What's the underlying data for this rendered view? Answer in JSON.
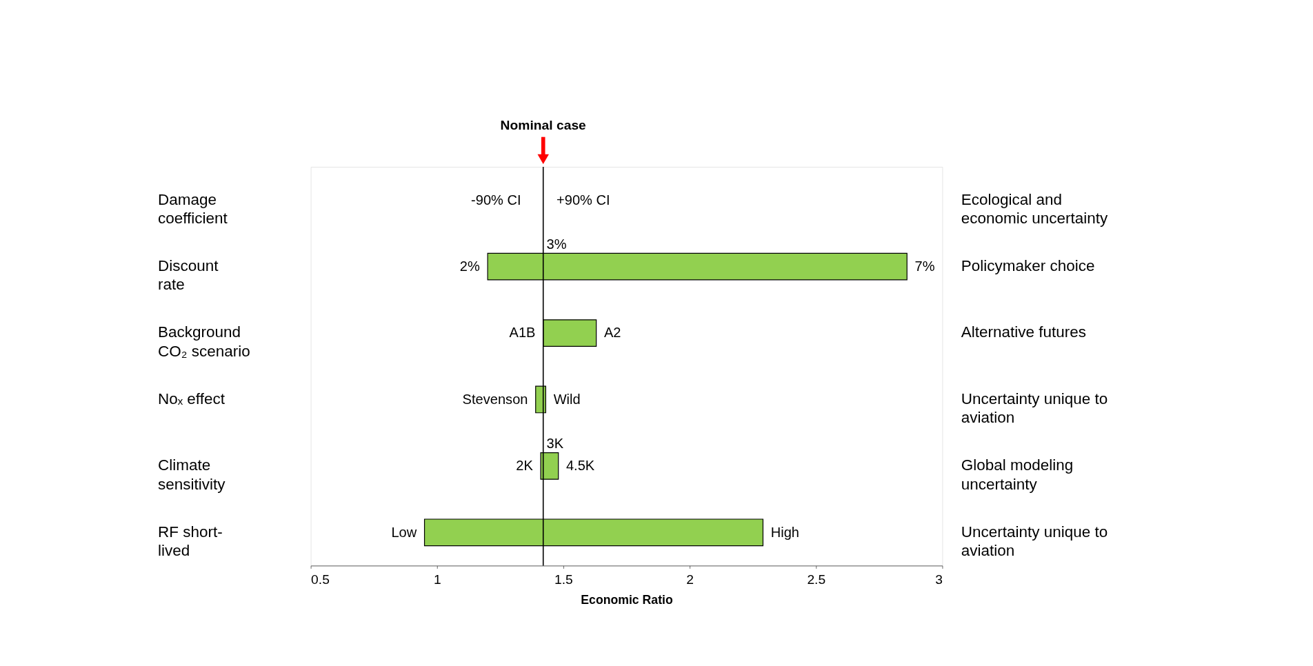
{
  "chart_data": {
    "type": "bar",
    "orientation": "horizontal",
    "xlabel": "Economic Ratio",
    "categories": [
      "Damage coefficient",
      "Discount rate",
      "Background CO₂ scenario",
      "Noₓ effect",
      "Climate sensitivity",
      "RF short-lived"
    ],
    "base": [
      null,
      1.2,
      1.42,
      1.39,
      1.41,
      0.95
    ],
    "values": [
      null,
      1.66,
      0.21,
      0.04,
      0.07,
      1.34
    ],
    "color": "#92d050",
    "xlim": [
      0.5,
      3
    ],
    "xticks": [
      0.5,
      1,
      1.5,
      2,
      2.5,
      3
    ],
    "grid": false,
    "ref_lines": [
      {
        "axis": "x",
        "value": 1.42,
        "label": "Nominal case",
        "color": "#000000"
      }
    ],
    "annotations": [
      "-90% CI",
      "+90% CI",
      {
        "text": "3%",
        "x": 1.42,
        "y": "Discount rate"
      },
      {
        "text": "2%",
        "x": 1.2,
        "y": "Discount rate"
      },
      {
        "text": "7%",
        "x": 2.86,
        "y": "Discount rate"
      },
      {
        "text": "A1B",
        "x": 1.42,
        "y": "Background CO₂ scenario"
      },
      {
        "text": "A2",
        "x": 1.63,
        "y": "Background CO₂ scenario"
      },
      {
        "text": "Stevenson",
        "x": 1.39,
        "y": "Noₓ effect"
      },
      {
        "text": "Wild",
        "x": 1.43,
        "y": "Noₓ effect"
      },
      {
        "text": "3K",
        "x": 1.42,
        "y": "Climate sensitivity"
      },
      {
        "text": "2K",
        "x": 1.41,
        "y": "Climate sensitivity"
      },
      {
        "text": "4.5K",
        "x": 1.48,
        "y": "Climate sensitivity"
      },
      {
        "text": "Low",
        "x": 0.95,
        "y": "RF short-lived"
      },
      {
        "text": "High",
        "x": 2.29,
        "y": "RF short-lived"
      },
      "Ecological and economic uncertainty",
      "Policymaker choice",
      "Alternative futures",
      "Uncertainty unique to aviation",
      "Global modeling uncertainty",
      "Uncertainty unique to aviation"
    ]
  }
}
